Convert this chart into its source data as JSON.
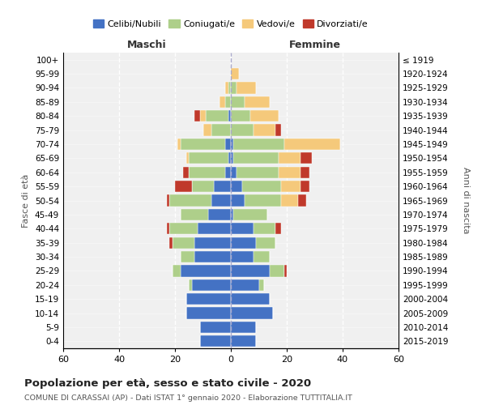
{
  "age_groups": [
    "0-4",
    "5-9",
    "10-14",
    "15-19",
    "20-24",
    "25-29",
    "30-34",
    "35-39",
    "40-44",
    "45-49",
    "50-54",
    "55-59",
    "60-64",
    "65-69",
    "70-74",
    "75-79",
    "80-84",
    "85-89",
    "90-94",
    "95-99",
    "100+"
  ],
  "birth_years": [
    "2015-2019",
    "2010-2014",
    "2005-2009",
    "2000-2004",
    "1995-1999",
    "1990-1994",
    "1985-1989",
    "1980-1984",
    "1975-1979",
    "1970-1974",
    "1965-1969",
    "1960-1964",
    "1955-1959",
    "1950-1954",
    "1945-1949",
    "1940-1944",
    "1935-1939",
    "1930-1934",
    "1925-1929",
    "1920-1924",
    "≤ 1919"
  ],
  "maschi": {
    "celibi": [
      11,
      11,
      16,
      16,
      14,
      18,
      13,
      13,
      12,
      8,
      7,
      6,
      2,
      1,
      2,
      0,
      1,
      0,
      0,
      0,
      0
    ],
    "coniugati": [
      0,
      0,
      0,
      0,
      1,
      3,
      5,
      8,
      10,
      10,
      15,
      8,
      13,
      14,
      16,
      7,
      8,
      2,
      1,
      0,
      0
    ],
    "vedovi": [
      0,
      0,
      0,
      0,
      0,
      0,
      0,
      0,
      0,
      0,
      0,
      0,
      0,
      1,
      1,
      3,
      2,
      2,
      1,
      0,
      0
    ],
    "divorziati": [
      0,
      0,
      0,
      0,
      0,
      0,
      0,
      1,
      1,
      0,
      1,
      6,
      2,
      0,
      0,
      0,
      2,
      0,
      0,
      0,
      0
    ]
  },
  "femmine": {
    "nubili": [
      9,
      9,
      15,
      14,
      10,
      14,
      8,
      9,
      8,
      1,
      5,
      4,
      2,
      1,
      1,
      0,
      0,
      0,
      0,
      0,
      0
    ],
    "coniugate": [
      0,
      0,
      0,
      0,
      2,
      5,
      6,
      7,
      8,
      12,
      13,
      14,
      15,
      16,
      18,
      8,
      7,
      5,
      2,
      0,
      0
    ],
    "vedove": [
      0,
      0,
      0,
      0,
      0,
      0,
      0,
      0,
      0,
      0,
      6,
      7,
      8,
      8,
      20,
      8,
      10,
      9,
      7,
      3,
      0
    ],
    "divorziate": [
      0,
      0,
      0,
      0,
      0,
      1,
      0,
      0,
      2,
      0,
      3,
      3,
      3,
      4,
      0,
      2,
      0,
      0,
      0,
      0,
      0
    ]
  },
  "colors": {
    "celibi_nubili": "#4472C4",
    "coniugati": "#AECF8A",
    "vedovi": "#F5C97B",
    "divorziati": "#C0392B"
  },
  "xlim": 60,
  "title": "Popolazione per età, sesso e stato civile - 2020",
  "subtitle": "COMUNE DI CARASSAI (AP) - Dati ISTAT 1° gennaio 2020 - Elaborazione TUTTITALIA.IT",
  "ylabel_left": "Fasce di età",
  "ylabel_right": "Anni di nascita",
  "xlabel_left": "Maschi",
  "xlabel_right": "Femmine",
  "background_color": "#f0f0f0"
}
